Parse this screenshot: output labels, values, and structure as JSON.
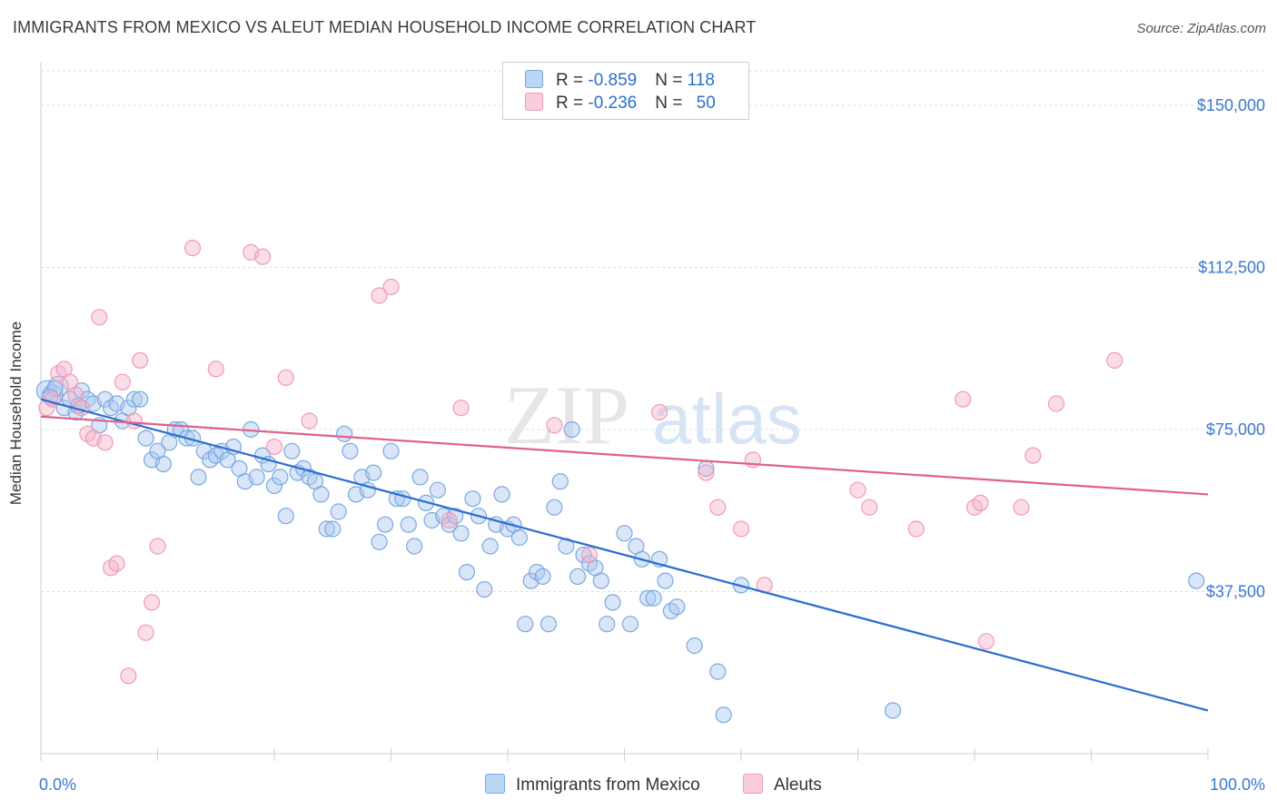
{
  "title": "IMMIGRANTS FROM MEXICO VS ALEUT MEDIAN HOUSEHOLD INCOME CORRELATION CHART",
  "source": "Source: ZipAtlas.com",
  "watermark": {
    "zip": "ZIP",
    "atlas": "atlas"
  },
  "legend": {
    "rows": [
      {
        "r_label": "R = ",
        "r_value": "-0.859",
        "n_label": "N = ",
        "n_value": "118",
        "color": "#a8c8f0"
      },
      {
        "r_label": "R = ",
        "r_value": "-0.236",
        "n_label": "N = ",
        "n_value": "50",
        "color": "#f5b8cc"
      }
    ]
  },
  "chart_data": {
    "type": "scatter",
    "ylabel": "Median Household Income",
    "xlabel": "",
    "xlim": [
      0,
      100
    ],
    "ylim": [
      0,
      158000
    ],
    "x_tick_labels": {
      "min": "0.0%",
      "max": "100.0%"
    },
    "y_ticks": [
      37500,
      75000,
      112500,
      150000
    ],
    "y_tick_labels": [
      "$37,500",
      "$75,000",
      "$112,500",
      "$150,000"
    ],
    "grid": true,
    "legend_position": "top-center",
    "series": [
      {
        "name": "Immigrants from Mexico",
        "color": "#7aa8e0",
        "line_color": "#2a6fd0",
        "trend": {
          "x": [
            0,
            100
          ],
          "y": [
            82000,
            10000
          ]
        },
        "points": [
          [
            0.5,
            84000
          ],
          [
            1,
            83000
          ],
          [
            1.5,
            85000
          ],
          [
            2,
            80000
          ],
          [
            2.5,
            82000
          ],
          [
            3,
            79000
          ],
          [
            3.5,
            84000
          ],
          [
            4,
            82000
          ],
          [
            4.5,
            81000
          ],
          [
            5,
            76000
          ],
          [
            5.5,
            82000
          ],
          [
            6,
            80000
          ],
          [
            6.5,
            81000
          ],
          [
            7,
            77000
          ],
          [
            7.5,
            80000
          ],
          [
            8,
            82000
          ],
          [
            8.5,
            82000
          ],
          [
            9,
            73000
          ],
          [
            9.5,
            68000
          ],
          [
            10,
            70000
          ],
          [
            10.5,
            67000
          ],
          [
            11,
            72000
          ],
          [
            11.5,
            75000
          ],
          [
            12,
            75000
          ],
          [
            12.5,
            73000
          ],
          [
            13,
            73000
          ],
          [
            13.5,
            64000
          ],
          [
            14,
            70000
          ],
          [
            14.5,
            68000
          ],
          [
            15,
            69000
          ],
          [
            15.5,
            70000
          ],
          [
            16,
            68000
          ],
          [
            16.5,
            71000
          ],
          [
            17,
            66000
          ],
          [
            17.5,
            63000
          ],
          [
            18,
            75000
          ],
          [
            18.5,
            64000
          ],
          [
            19,
            69000
          ],
          [
            19.5,
            67000
          ],
          [
            20,
            62000
          ],
          [
            20.5,
            64000
          ],
          [
            21,
            55000
          ],
          [
            21.5,
            70000
          ],
          [
            22,
            65000
          ],
          [
            22.5,
            66000
          ],
          [
            23,
            64000
          ],
          [
            23.5,
            63000
          ],
          [
            24,
            60000
          ],
          [
            24.5,
            52000
          ],
          [
            25,
            52000
          ],
          [
            25.5,
            56000
          ],
          [
            26,
            74000
          ],
          [
            26.5,
            70000
          ],
          [
            27,
            60000
          ],
          [
            27.5,
            64000
          ],
          [
            28,
            61000
          ],
          [
            28.5,
            65000
          ],
          [
            29,
            49000
          ],
          [
            29.5,
            53000
          ],
          [
            30,
            70000
          ],
          [
            30.5,
            59000
          ],
          [
            31,
            59000
          ],
          [
            31.5,
            53000
          ],
          [
            32,
            48000
          ],
          [
            32.5,
            64000
          ],
          [
            33,
            58000
          ],
          [
            33.5,
            54000
          ],
          [
            34,
            61000
          ],
          [
            34.5,
            55000
          ],
          [
            35,
            53000
          ],
          [
            35.5,
            55000
          ],
          [
            36,
            51000
          ],
          [
            36.5,
            42000
          ],
          [
            37,
            59000
          ],
          [
            37.5,
            55000
          ],
          [
            38,
            38000
          ],
          [
            38.5,
            48000
          ],
          [
            39,
            53000
          ],
          [
            39.5,
            60000
          ],
          [
            40,
            52000
          ],
          [
            40.5,
            53000
          ],
          [
            41,
            50000
          ],
          [
            41.5,
            30000
          ],
          [
            42,
            40000
          ],
          [
            42.5,
            42000
          ],
          [
            43,
            41000
          ],
          [
            43.5,
            30000
          ],
          [
            44,
            57000
          ],
          [
            44.5,
            63000
          ],
          [
            45,
            48000
          ],
          [
            45.5,
            75000
          ],
          [
            46,
            41000
          ],
          [
            46.5,
            46000
          ],
          [
            47,
            44000
          ],
          [
            47.5,
            43000
          ],
          [
            48,
            40000
          ],
          [
            48.5,
            30000
          ],
          [
            49,
            35000
          ],
          [
            50,
            51000
          ],
          [
            50.5,
            30000
          ],
          [
            51,
            48000
          ],
          [
            51.5,
            45000
          ],
          [
            52,
            36000
          ],
          [
            52.5,
            36000
          ],
          [
            53,
            45000
          ],
          [
            53.5,
            40000
          ],
          [
            54,
            33000
          ],
          [
            54.5,
            34000
          ],
          [
            56,
            25000
          ],
          [
            57,
            66000
          ],
          [
            58,
            19000
          ],
          [
            58.5,
            9000
          ],
          [
            60,
            39000
          ],
          [
            73,
            10000
          ],
          [
            99,
            40000
          ],
          [
            1.2,
            84500
          ],
          [
            3.2,
            80500
          ],
          [
            0.8,
            82500
          ]
        ]
      },
      {
        "name": "Aleuts",
        "color": "#f09ab8",
        "line_color": "#e0608a",
        "trend": {
          "x": [
            0,
            100
          ],
          "y": [
            78000,
            60000
          ]
        },
        "points": [
          [
            0.5,
            80000
          ],
          [
            1,
            82000
          ],
          [
            1.5,
            88000
          ],
          [
            2,
            89000
          ],
          [
            2.5,
            86000
          ],
          [
            3,
            83000
          ],
          [
            3.5,
            80000
          ],
          [
            4,
            74000
          ],
          [
            4.5,
            73000
          ],
          [
            5,
            101000
          ],
          [
            5.5,
            72000
          ],
          [
            6,
            43000
          ],
          [
            6.5,
            44000
          ],
          [
            7,
            86000
          ],
          [
            7.5,
            18000
          ],
          [
            8,
            77000
          ],
          [
            8.5,
            91000
          ],
          [
            9,
            28000
          ],
          [
            9.5,
            35000
          ],
          [
            10,
            48000
          ],
          [
            13,
            117000
          ],
          [
            15,
            89000
          ],
          [
            18,
            116000
          ],
          [
            19,
            115000
          ],
          [
            20,
            71000
          ],
          [
            21,
            87000
          ],
          [
            23,
            77000
          ],
          [
            29,
            106000
          ],
          [
            30,
            108000
          ],
          [
            35,
            54000
          ],
          [
            36,
            80000
          ],
          [
            44,
            76000
          ],
          [
            47,
            46000
          ],
          [
            53,
            79000
          ],
          [
            57,
            65000
          ],
          [
            58,
            57000
          ],
          [
            60,
            52000
          ],
          [
            61,
            68000
          ],
          [
            62,
            39000
          ],
          [
            70,
            61000
          ],
          [
            71,
            57000
          ],
          [
            75,
            52000
          ],
          [
            79,
            82000
          ],
          [
            80,
            57000
          ],
          [
            80.5,
            58000
          ],
          [
            81,
            26000
          ],
          [
            84,
            57000
          ],
          [
            85,
            69000
          ],
          [
            87,
            81000
          ],
          [
            92,
            91000
          ]
        ]
      }
    ]
  }
}
